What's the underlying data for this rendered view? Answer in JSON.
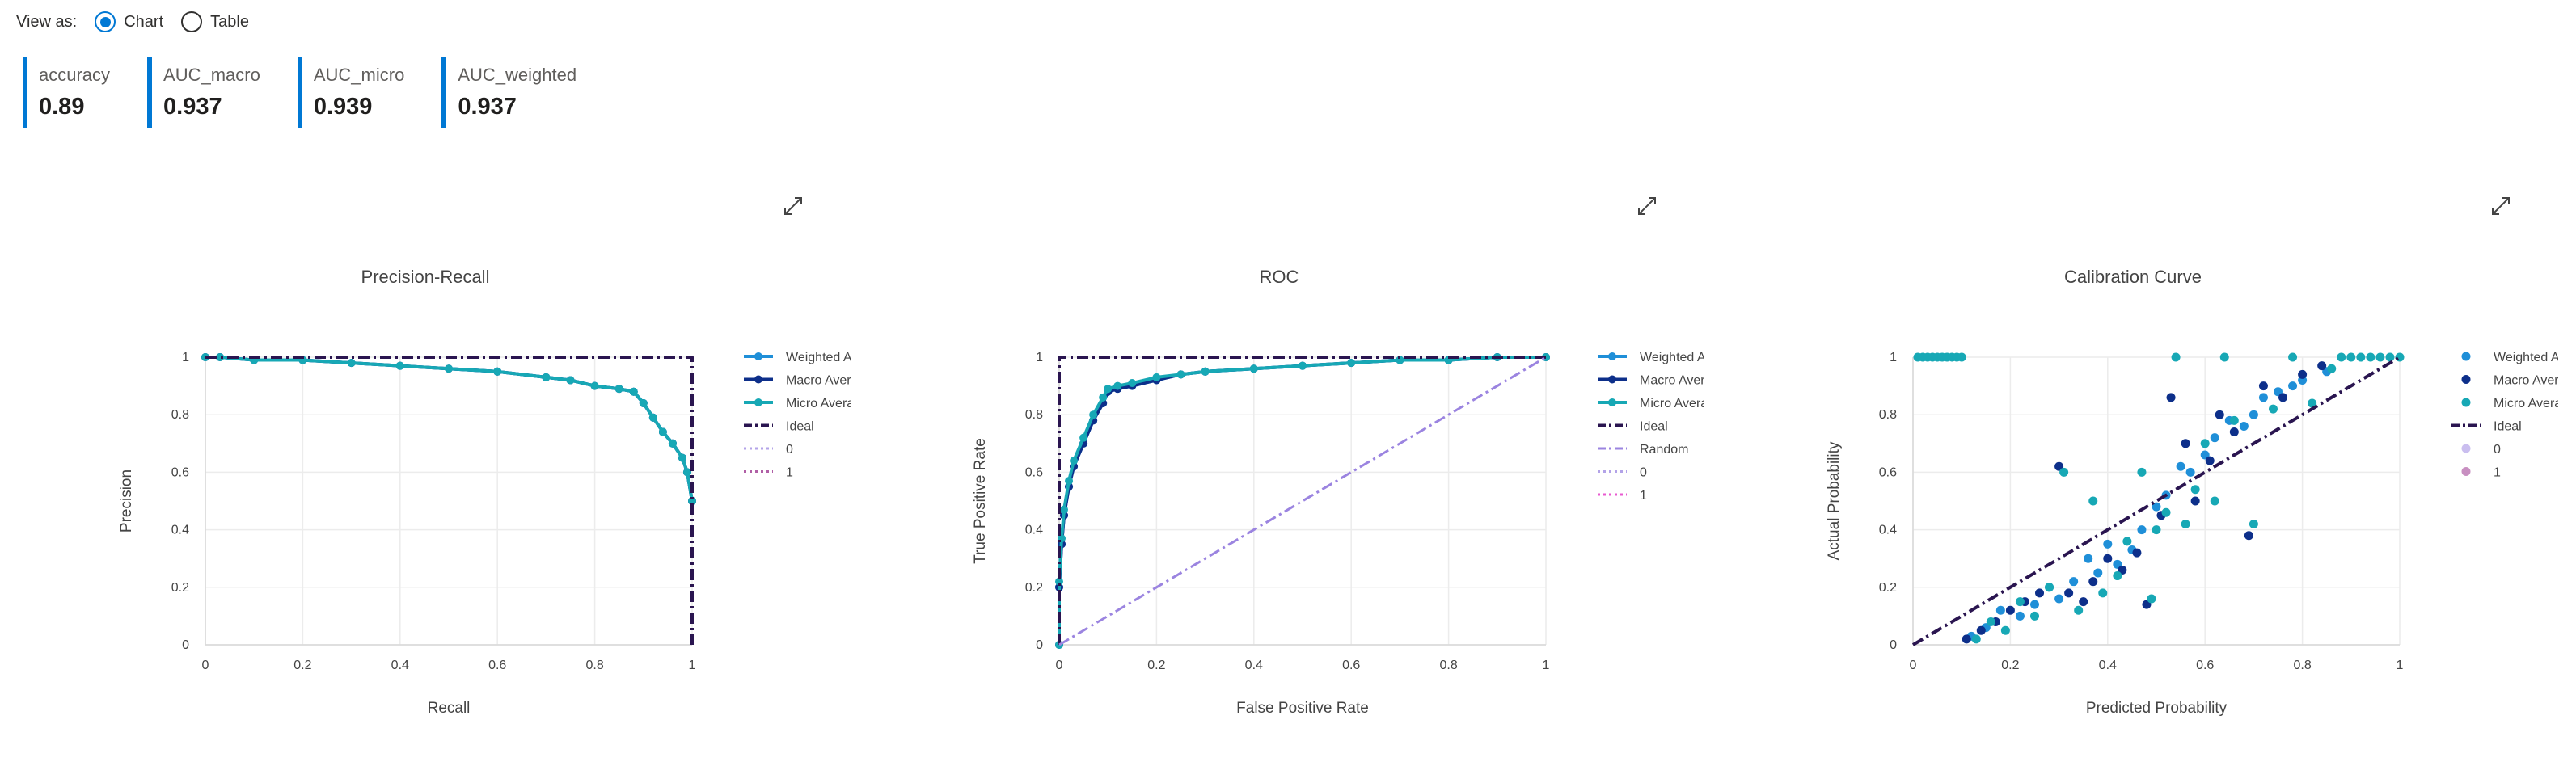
{
  "view_as": {
    "label": "View as:",
    "options": [
      {
        "label": "Chart",
        "selected": true
      },
      {
        "label": "Table",
        "selected": false
      }
    ]
  },
  "metrics": [
    {
      "name": "accuracy",
      "value": "0.89"
    },
    {
      "name": "AUC_macro",
      "value": "0.937"
    },
    {
      "name": "AUC_micro",
      "value": "0.939"
    },
    {
      "name": "AUC_weighted",
      "value": "0.937"
    }
  ],
  "colors": {
    "weighted": "#1f8fd8",
    "macro": "#0d2f8a",
    "micro": "#17a8b5",
    "ideal": "#2a1550",
    "random": "#9b84e0",
    "class0": "#b3a3e8",
    "class1": "#b05fa6",
    "class1_roc": "#e85ad0",
    "accent": "#0078d4"
  },
  "icons": {
    "expand": "expand-icon"
  },
  "chart_data": [
    {
      "type": "line",
      "title": "Precision-Recall",
      "xlabel": "Recall",
      "ylabel": "Precision",
      "xlim": [
        0,
        1
      ],
      "ylim": [
        0,
        1
      ],
      "x_ticks": [
        "0",
        "0.2",
        "0.4",
        "0.6",
        "0.8",
        "1"
      ],
      "y_ticks": [
        "0",
        "0.2",
        "0.4",
        "0.6",
        "0.8",
        "1"
      ],
      "grid": true,
      "legend_position": "right",
      "series": [
        {
          "name": "Weighted Average",
          "x": [
            0,
            0.03,
            0.1,
            0.2,
            0.3,
            0.4,
            0.5,
            0.6,
            0.7,
            0.75,
            0.8,
            0.85,
            0.88,
            0.9,
            0.92,
            0.94,
            0.96,
            0.98,
            0.99,
            1.0
          ],
          "y": [
            1.0,
            1.0,
            0.99,
            0.99,
            0.98,
            0.97,
            0.96,
            0.95,
            0.93,
            0.92,
            0.9,
            0.89,
            0.88,
            0.84,
            0.79,
            0.74,
            0.7,
            0.65,
            0.6,
            0.5
          ]
        },
        {
          "name": "Macro Average",
          "x": [
            0,
            0.03,
            0.1,
            0.2,
            0.3,
            0.4,
            0.5,
            0.6,
            0.7,
            0.75,
            0.8,
            0.85,
            0.88,
            0.9,
            0.92,
            0.94,
            0.96,
            0.98,
            0.99,
            1.0
          ],
          "y": [
            1.0,
            1.0,
            0.99,
            0.99,
            0.98,
            0.97,
            0.96,
            0.95,
            0.93,
            0.92,
            0.9,
            0.89,
            0.88,
            0.84,
            0.79,
            0.74,
            0.7,
            0.65,
            0.6,
            0.5
          ]
        },
        {
          "name": "Micro Average",
          "x": [
            0,
            0.03,
            0.1,
            0.2,
            0.3,
            0.4,
            0.5,
            0.6,
            0.7,
            0.75,
            0.8,
            0.85,
            0.88,
            0.9,
            0.92,
            0.94,
            0.96,
            0.98,
            0.99,
            1.0
          ],
          "y": [
            1.0,
            1.0,
            0.99,
            0.99,
            0.98,
            0.97,
            0.96,
            0.95,
            0.93,
            0.92,
            0.9,
            0.89,
            0.88,
            0.84,
            0.79,
            0.74,
            0.7,
            0.65,
            0.6,
            0.5
          ]
        },
        {
          "name": "Ideal",
          "x": [
            0,
            1,
            1
          ],
          "y": [
            1,
            1,
            0
          ]
        },
        {
          "name": "0",
          "x": [],
          "y": []
        },
        {
          "name": "1",
          "x": [],
          "y": []
        }
      ]
    },
    {
      "type": "line",
      "title": "ROC",
      "xlabel": "False Positive Rate",
      "ylabel": "True Positive Rate",
      "xlim": [
        0,
        1
      ],
      "ylim": [
        0,
        1
      ],
      "x_ticks": [
        "0",
        "0.2",
        "0.4",
        "0.6",
        "0.8",
        "1"
      ],
      "y_ticks": [
        "0",
        "0.2",
        "0.4",
        "0.6",
        "0.8",
        "1"
      ],
      "grid": true,
      "legend_position": "right",
      "series": [
        {
          "name": "Weighted Average",
          "x": [
            0,
            0.0,
            0.005,
            0.01,
            0.02,
            0.03,
            0.05,
            0.07,
            0.09,
            0.1,
            0.12,
            0.15,
            0.2,
            0.25,
            0.3,
            0.4,
            0.5,
            0.6,
            0.7,
            0.8,
            0.9,
            1.0
          ],
          "y": [
            0,
            0.2,
            0.35,
            0.45,
            0.55,
            0.62,
            0.7,
            0.78,
            0.84,
            0.88,
            0.89,
            0.9,
            0.92,
            0.94,
            0.95,
            0.96,
            0.97,
            0.98,
            0.99,
            0.99,
            1.0,
            1.0
          ]
        },
        {
          "name": "Macro Average",
          "x": [
            0,
            0.0,
            0.005,
            0.01,
            0.02,
            0.03,
            0.05,
            0.07,
            0.09,
            0.1,
            0.12,
            0.15,
            0.2,
            0.25,
            0.3,
            0.4,
            0.5,
            0.6,
            0.7,
            0.8,
            0.9,
            1.0
          ],
          "y": [
            0,
            0.2,
            0.35,
            0.45,
            0.55,
            0.62,
            0.7,
            0.78,
            0.84,
            0.88,
            0.89,
            0.9,
            0.92,
            0.94,
            0.95,
            0.96,
            0.97,
            0.98,
            0.99,
            0.99,
            1.0,
            1.0
          ]
        },
        {
          "name": "Micro Average",
          "x": [
            0,
            0.0,
            0.005,
            0.01,
            0.02,
            0.03,
            0.05,
            0.07,
            0.09,
            0.1,
            0.12,
            0.15,
            0.2,
            0.25,
            0.3,
            0.4,
            0.5,
            0.6,
            0.7,
            0.8,
            0.9,
            1.0
          ],
          "y": [
            0,
            0.22,
            0.37,
            0.47,
            0.57,
            0.64,
            0.72,
            0.8,
            0.86,
            0.89,
            0.9,
            0.91,
            0.93,
            0.94,
            0.95,
            0.96,
            0.97,
            0.98,
            0.99,
            0.99,
            1.0,
            1.0
          ]
        },
        {
          "name": "Ideal",
          "x": [
            0,
            0,
            1
          ],
          "y": [
            0,
            1,
            1
          ]
        },
        {
          "name": "Random",
          "x": [
            0,
            1
          ],
          "y": [
            0,
            1
          ]
        },
        {
          "name": "0",
          "x": [],
          "y": []
        },
        {
          "name": "1",
          "x": [],
          "y": []
        }
      ]
    },
    {
      "type": "scatter",
      "title": "Calibration Curve",
      "xlabel": "Predicted Probability",
      "ylabel": "Actual Probability",
      "xlim": [
        0,
        1
      ],
      "ylim": [
        0,
        1
      ],
      "x_ticks": [
        "0",
        "0.2",
        "0.4",
        "0.6",
        "0.8",
        "1"
      ],
      "y_ticks": [
        "0",
        "0.2",
        "0.4",
        "0.6",
        "0.8",
        "1"
      ],
      "grid": true,
      "legend_position": "right",
      "series": [
        {
          "name": "Weighted Average",
          "x": [
            0.12,
            0.15,
            0.18,
            0.22,
            0.25,
            0.28,
            0.3,
            0.33,
            0.36,
            0.38,
            0.4,
            0.42,
            0.45,
            0.47,
            0.5,
            0.52,
            0.55,
            0.57,
            0.6,
            0.62,
            0.65,
            0.68,
            0.7,
            0.72,
            0.75,
            0.78,
            0.8,
            0.85
          ],
          "y": [
            0.03,
            0.06,
            0.12,
            0.1,
            0.14,
            0.2,
            0.16,
            0.22,
            0.3,
            0.25,
            0.35,
            0.28,
            0.33,
            0.4,
            0.48,
            0.52,
            0.62,
            0.6,
            0.66,
            0.72,
            0.78,
            0.76,
            0.8,
            0.86,
            0.88,
            0.9,
            0.92,
            0.95
          ]
        },
        {
          "name": "Macro Average",
          "x": [
            0.11,
            0.14,
            0.17,
            0.2,
            0.23,
            0.26,
            0.3,
            0.32,
            0.35,
            0.37,
            0.4,
            0.43,
            0.46,
            0.48,
            0.51,
            0.53,
            0.56,
            0.58,
            0.61,
            0.63,
            0.66,
            0.69,
            0.72,
            0.76,
            0.8,
            0.84
          ],
          "y": [
            0.02,
            0.05,
            0.08,
            0.12,
            0.15,
            0.18,
            0.62,
            0.18,
            0.15,
            0.22,
            0.3,
            0.26,
            0.32,
            0.14,
            0.45,
            0.86,
            0.7,
            0.5,
            0.64,
            0.8,
            0.74,
            0.38,
            0.9,
            0.86,
            0.94,
            0.97
          ]
        },
        {
          "name": "Micro Average",
          "x": [
            0.01,
            0.02,
            0.03,
            0.04,
            0.05,
            0.06,
            0.07,
            0.08,
            0.09,
            0.1,
            0.13,
            0.16,
            0.19,
            0.22,
            0.25,
            0.28,
            0.31,
            0.34,
            0.37,
            0.39,
            0.42,
            0.44,
            0.47,
            0.49,
            0.5,
            0.52,
            0.54,
            0.56,
            0.58,
            0.6,
            0.62,
            0.64,
            0.66,
            0.7,
            0.74,
            0.78,
            0.82,
            0.86,
            0.88,
            0.9,
            0.92,
            0.94,
            0.96,
            0.98,
            1.0
          ],
          "y": [
            1,
            1,
            1,
            1,
            1,
            1,
            1,
            1,
            1,
            1,
            0.02,
            0.08,
            0.05,
            0.15,
            0.1,
            0.2,
            0.6,
            0.12,
            0.5,
            0.18,
            0.24,
            0.36,
            0.6,
            0.16,
            0.4,
            0.46,
            1.0,
            0.42,
            0.54,
            0.7,
            0.5,
            1.0,
            0.78,
            0.42,
            0.82,
            1.0,
            0.84,
            0.96,
            1.0,
            1.0,
            1.0,
            1.0,
            1.0,
            1.0,
            1.0
          ]
        },
        {
          "name": "Ideal",
          "x": [
            0,
            1
          ],
          "y": [
            0,
            1
          ]
        },
        {
          "name": "0",
          "x": [],
          "y": []
        },
        {
          "name": "1",
          "x": [],
          "y": []
        }
      ]
    }
  ]
}
